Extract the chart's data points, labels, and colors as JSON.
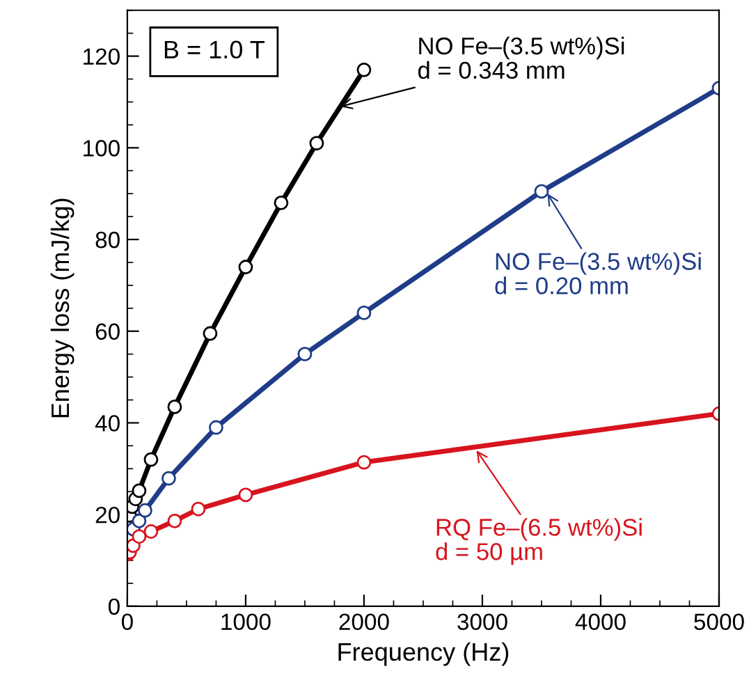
{
  "chart_data": {
    "type": "line",
    "xlabel": "Frequency (Hz)",
    "ylabel": "Energy loss (mJ/kg)",
    "xlim": [
      0,
      5000
    ],
    "xticks": [
      0,
      1000,
      2000,
      3000,
      4000,
      5000
    ],
    "ylim": [
      0,
      130
    ],
    "yticks": [
      0,
      20,
      40,
      60,
      80,
      100,
      120
    ],
    "marker": "circle",
    "line_style": "solid",
    "grid": false,
    "legend": false,
    "series": [
      {
        "color": "#000000",
        "x": [
          10,
          20,
          40,
          70,
          100,
          200,
          400,
          700,
          1000,
          1300,
          1600,
          2000
        ],
        "values": [
          17.8,
          19.8,
          21.7,
          23.4,
          25.2,
          32,
          43.5,
          59.5,
          74,
          88,
          101,
          117
        ]
      },
      {
        "color": "#1f3c88",
        "x": [
          5,
          10,
          50,
          100,
          150,
          350,
          750,
          1500,
          2000,
          3500,
          5000
        ],
        "values": [
          14.2,
          15.4,
          16.8,
          18.6,
          20.9,
          27.9,
          39,
          55,
          64,
          90.5,
          113
        ]
      },
      {
        "color": "#d7141e",
        "x": [
          5,
          20,
          50,
          100,
          200,
          400,
          600,
          1000,
          2000,
          5000
        ],
        "values": [
          11.4,
          11.8,
          13.2,
          15.2,
          16.3,
          18.6,
          21.2,
          24.3,
          31.4,
          42
        ]
      }
    ],
    "annotations": [
      "B = 1.0 T",
      {
        "text": "NO Fe–(3.5 wt%)Si\nd = 0.343 mm",
        "x": 1800,
        "y": 109
      },
      {
        "text": "NO Fe–(3.5 wt%)Si\nd = 0.20 mm",
        "x": 3550,
        "y": 90
      },
      {
        "text": "RQ Fe–(6.5 wt%)Si\nd = 50 µm",
        "x": 2950,
        "y": 34
      }
    ]
  }
}
